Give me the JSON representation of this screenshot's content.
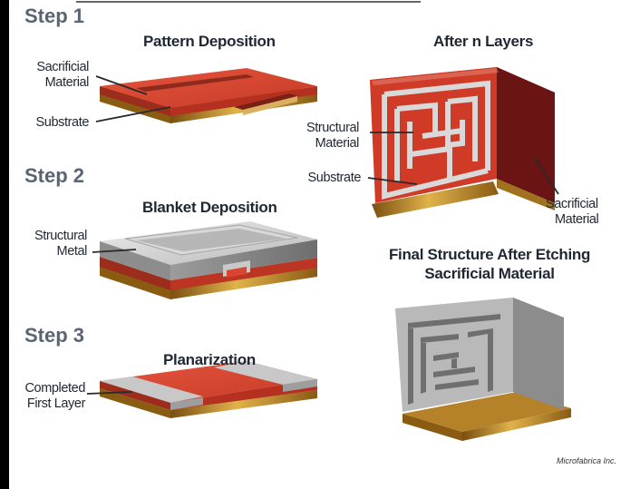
{
  "steps": {
    "step1": "Step 1",
    "step2": "Step 2",
    "step3": "Step 3"
  },
  "titles": {
    "pattern_deposition": "Pattern Deposition",
    "blanket_deposition": "Blanket Deposition",
    "planarization": "Planarization",
    "after_n_layers": "After n Layers",
    "final_structure_line1": "Final Structure After Etching",
    "final_structure_line2": "Sacrificial Material"
  },
  "labels": {
    "sacrificial_material_line1": "Sacrificial",
    "sacrificial_material_line2": "Material",
    "substrate": "Substrate",
    "structural_metal_line1": "Structural",
    "structural_metal_line2": "Metal",
    "completed_first_layer_line1": "Completed",
    "completed_first_layer_line2": "First Layer",
    "structural_material_line1": "Structural",
    "structural_material_line2": "Material",
    "substrate_right": "Substrate",
    "sacrificial_material_right_line1": "Sacrificial",
    "sacrificial_material_right_line2": "Material"
  },
  "credit": "Microfabrica Inc.",
  "colors": {
    "sacrificial": "#d9452f",
    "structural": "#c9c9c9",
    "substrate": "#b8862a",
    "dark_block": "#6a1414"
  }
}
